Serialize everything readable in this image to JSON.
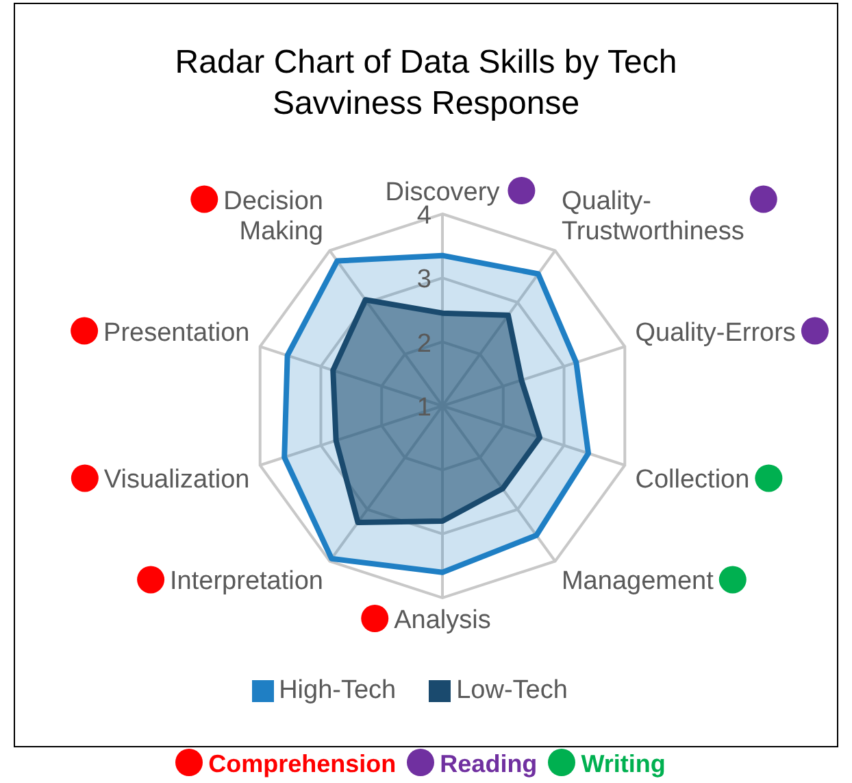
{
  "chart_data": {
    "type": "radar",
    "title": "Radar Chart of Data Skills by Tech Savviness Response",
    "categories": [
      "Discovery",
      "Quality-Trustworthiness",
      "Quality-Errors",
      "Collection",
      "Management",
      "Analysis",
      "Interpretation",
      "Visualization",
      "Presentation",
      "Decision Making"
    ],
    "series": [
      {
        "name": "High-Tech",
        "color": "#1f7fc4",
        "values": [
          3.35,
          3.55,
          3.2,
          3.4,
          3.5,
          3.6,
          3.95,
          3.6,
          3.55,
          3.8
        ]
      },
      {
        "name": "Low-Tech",
        "color": "#1a4a6e",
        "values": [
          2.45,
          2.75,
          2.3,
          2.6,
          2.6,
          2.8,
          3.25,
          2.75,
          2.8,
          3.05
        ]
      }
    ],
    "ylim": [
      1,
      4
    ],
    "yticks": [
      1,
      2,
      3,
      4
    ],
    "grid": true,
    "legend": "bottom",
    "annotations": [
      "Comprehension",
      "Reading",
      "Writing"
    ]
  }
}
